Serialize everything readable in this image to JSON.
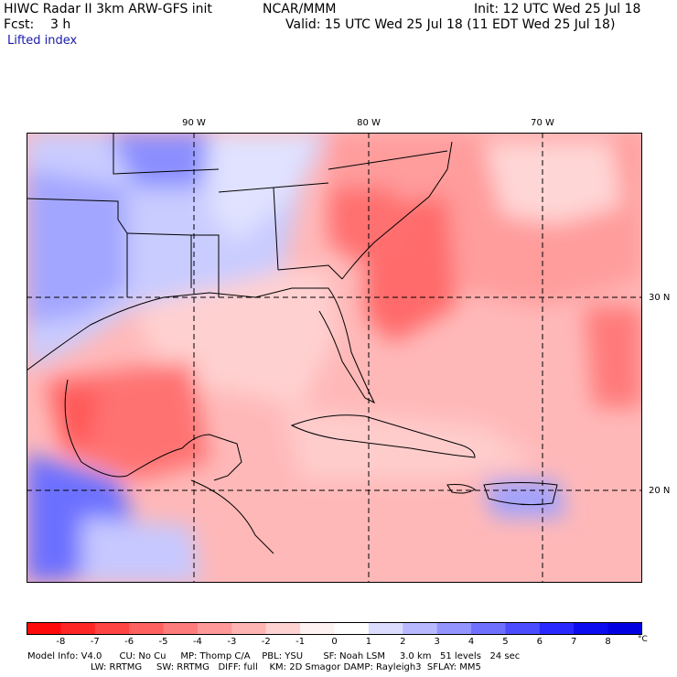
{
  "header": {
    "model": "HIWC Radar II 3km ARW-GFS init",
    "org": "NCAR/MMM",
    "init": "Init: 12 UTC Wed 25 Jul 18",
    "fcst": "Fcst:    3 h",
    "valid": "Valid: 15 UTC Wed 25 Jul 18 (11 EDT Wed 25 Jul 18)",
    "field": "Lifted index"
  },
  "axes": {
    "lon": [
      {
        "label": "90 W"
      },
      {
        "label": "80 W"
      },
      {
        "label": "70 W"
      }
    ],
    "lat": [
      {
        "label": "30 N"
      },
      {
        "label": "20 N"
      }
    ]
  },
  "colorbar": {
    "labels": [
      "-8",
      "-7",
      "-6",
      "-5",
      "-4",
      "-3",
      "-2",
      "-1",
      "0",
      "1",
      "2",
      "3",
      "4",
      "5",
      "6",
      "7",
      "8"
    ],
    "unit": "°C",
    "colors": [
      "#ff0a0a",
      "#ff2626",
      "#ff4444",
      "#ff6060",
      "#ff7c7c",
      "#ff9898",
      "#ffb4b4",
      "#ffd2d2",
      "#fff2f2",
      "#ffffff",
      "#dcdcff",
      "#b8b8ff",
      "#9494ff",
      "#7070ff",
      "#4c4cff",
      "#2828ff",
      "#0c0cf0",
      "#0000e0"
    ]
  },
  "model_info": {
    "line1": "Model Info: V4.0      CU: No Cu     MP: Thomp C/A    PBL: YSU       SF: Noah LSM     3.0 km   51 levels   24 sec",
    "line2": "LW: RRTMG     SW: RRTMG   DIFF: full    KM: 2D Smagor DAMP: Rayleigh3  SFLAY: MM5"
  }
}
